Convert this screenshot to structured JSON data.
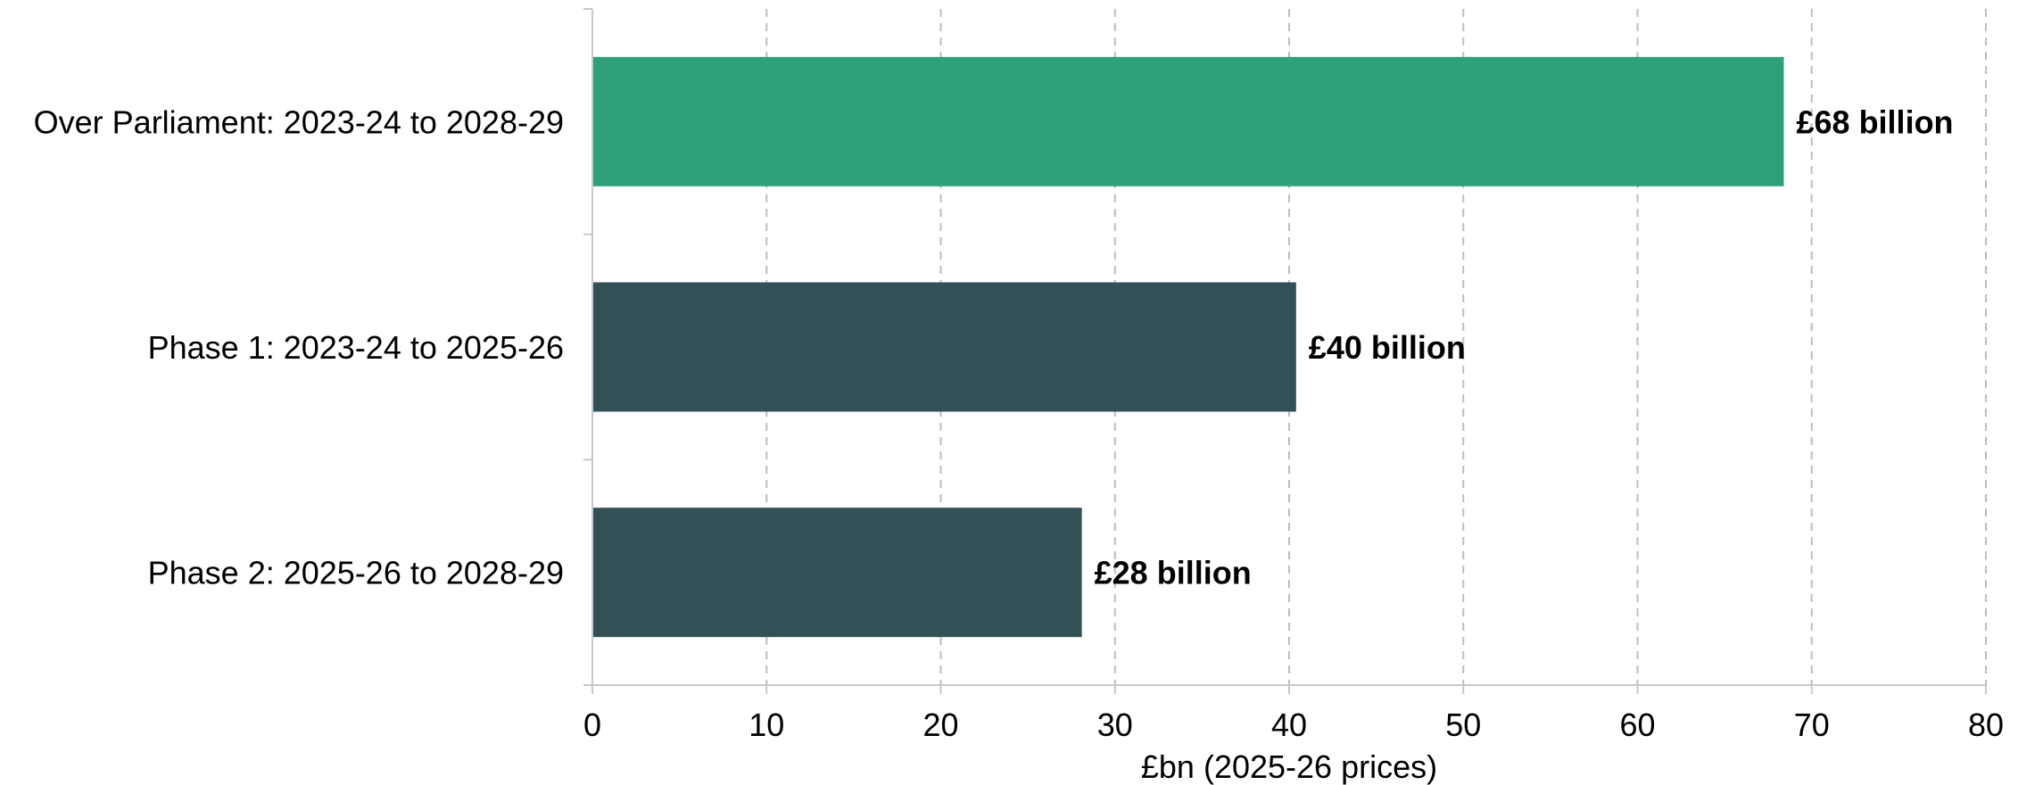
{
  "chart_data": {
    "type": "bar",
    "orientation": "horizontal",
    "categories": [
      "Over Parliament: 2023-24 to 2028-29",
      "Phase 1: 2023-24 to 2025-26",
      "Phase 2: 2025-26 to 2028-29"
    ],
    "values": [
      68.4,
      40.4,
      28.1
    ],
    "data_labels": [
      "£68 billion",
      "£40 billion",
      "£28 billion"
    ],
    "bar_colors": [
      "#2fa077",
      "#345057",
      "#345057"
    ],
    "title": "",
    "xlabel": "£bn (2025-26 prices)",
    "ylabel": "",
    "xlim": [
      0,
      80
    ],
    "xticks": [
      0,
      10,
      20,
      30,
      40,
      50,
      60,
      70,
      80
    ],
    "grid": "vertical dashed",
    "legend": "none"
  }
}
